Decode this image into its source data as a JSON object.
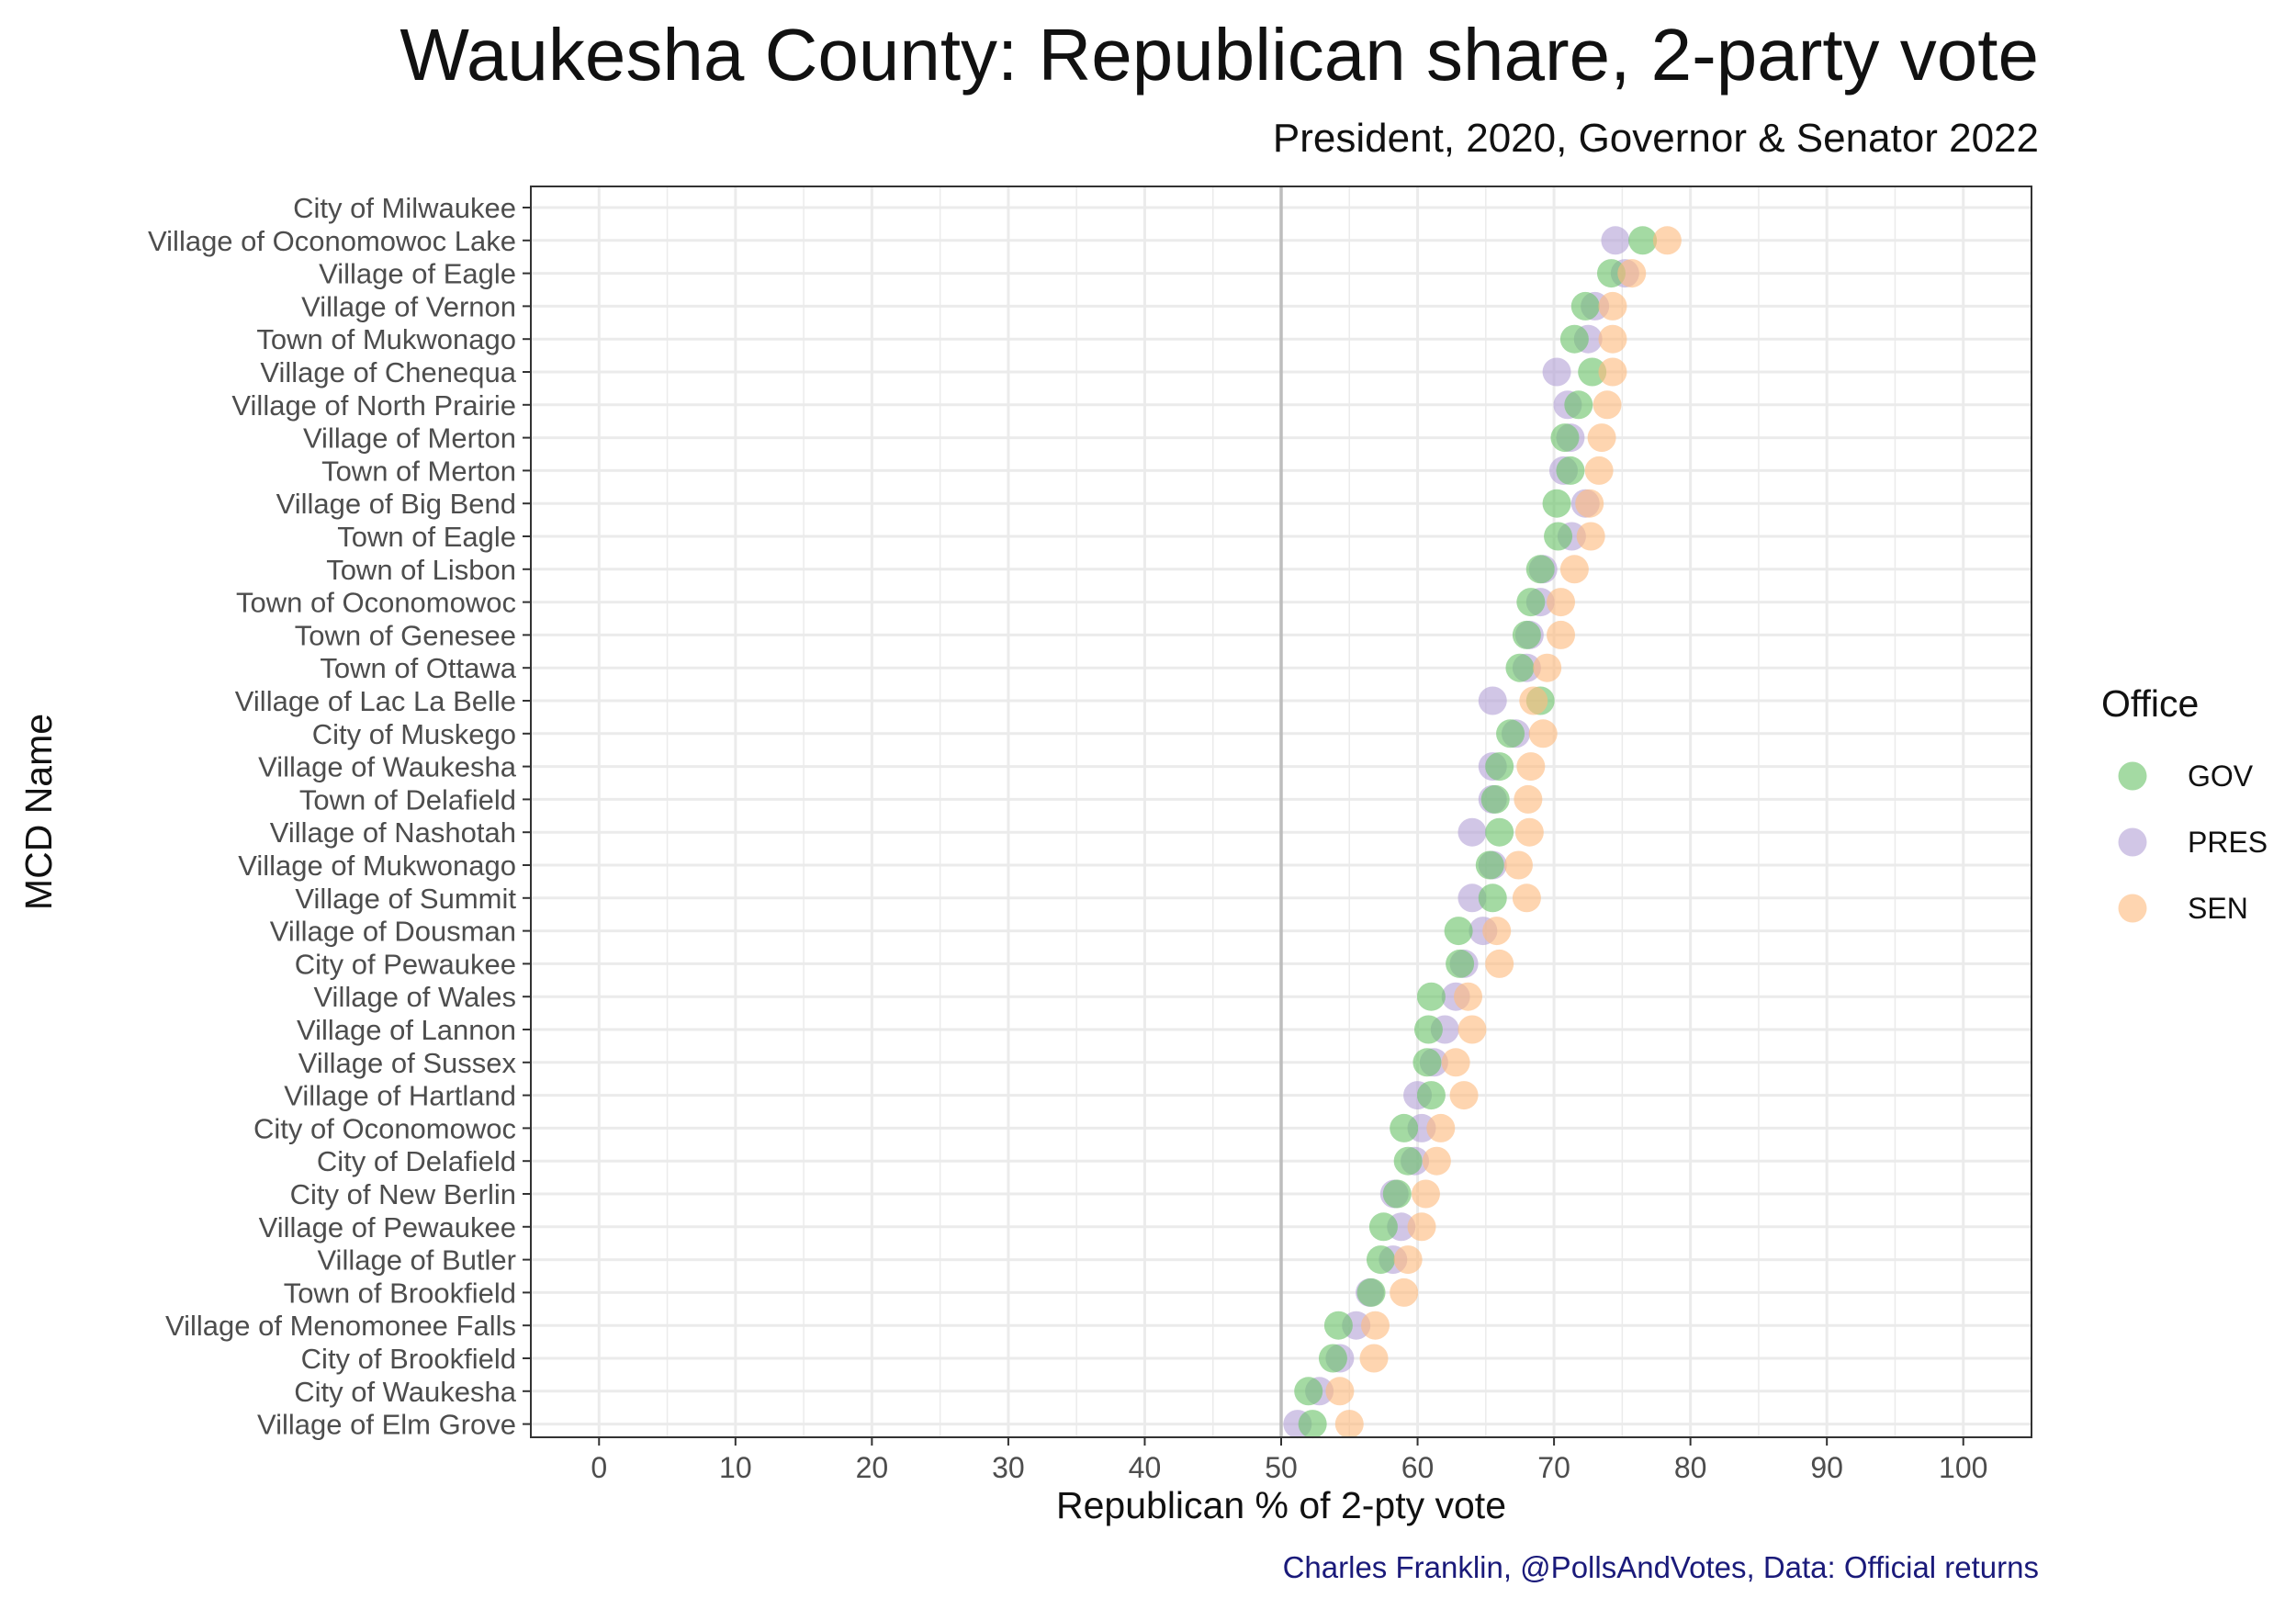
{
  "header": {
    "title": "Waukesha County: Republican share, 2-party vote",
    "subtitle": "President, 2020, Governor & Senator 2022",
    "caption": "Charles Franklin, @PollsAndVotes, Data: Official returns"
  },
  "colors": {
    "GOV": "#6cc46a",
    "PRES": "#b4a3d6",
    "SEN": "#fdbb7f",
    "reference_line": "#bdbdbd",
    "grid": "#ebebeb",
    "panel_border": "#333333"
  },
  "legend": {
    "title": "Office",
    "position": "right",
    "items": [
      {
        "key": "GOV",
        "label": "GOV"
      },
      {
        "key": "PRES",
        "label": "PRES"
      },
      {
        "key": "SEN",
        "label": "SEN"
      }
    ]
  },
  "chart_data": {
    "type": "scatter",
    "title": "Waukesha County: Republican share, 2-party vote",
    "subtitle": "President, 2020, Governor & Senator 2022",
    "xlabel": "Republican % of 2-pty vote",
    "ylabel": "MCD Name",
    "xlim": [
      -5,
      105
    ],
    "xticks": [
      0,
      10,
      20,
      30,
      40,
      50,
      60,
      70,
      80,
      90,
      100
    ],
    "reference_line_x": 50,
    "grid": true,
    "categories": [
      "City of Milwaukee",
      "Village of Oconomowoc Lake",
      "Village of Eagle",
      "Village of Vernon",
      "Town of Mukwonago",
      "Village of Chenequa",
      "Village of North Prairie",
      "Village of Merton",
      "Town of Merton",
      "Village of Big Bend",
      "Town of Eagle",
      "Town of Lisbon",
      "Town of Oconomowoc",
      "Town of Genesee",
      "Town of Ottawa",
      "Village of Lac La Belle",
      "City of Muskego",
      "Village of Waukesha",
      "Town of Delafield",
      "Village of Nashotah",
      "Village of Mukwonago",
      "Village of Summit",
      "Village of Dousman",
      "City of Pewaukee",
      "Village of Wales",
      "Village of Lannon",
      "Village of Sussex",
      "Village of Hartland",
      "City of Oconomowoc",
      "City of Delafield",
      "City of New Berlin",
      "Village of Pewaukee",
      "Village of Butler",
      "Town of Brookfield",
      "Village of Menomonee Falls",
      "City of Brookfield",
      "City of Waukesha",
      "Village of Elm Grove"
    ],
    "series": [
      {
        "name": "GOV",
        "values": [
          null,
          76.5,
          74.2,
          72.3,
          71.5,
          72.8,
          71.8,
          70.8,
          71.2,
          70.2,
          70.3,
          69.0,
          68.3,
          68.0,
          67.5,
          69.0,
          66.8,
          66.0,
          65.7,
          66.0,
          65.3,
          65.5,
          63.0,
          63.1,
          61.0,
          60.8,
          60.7,
          61.0,
          59.0,
          59.3,
          58.5,
          57.5,
          57.3,
          56.6,
          54.2,
          53.8,
          52.0,
          52.3
        ]
      },
      {
        "name": "PRES",
        "values": [
          null,
          74.5,
          75.2,
          73.0,
          72.5,
          70.2,
          71.0,
          71.2,
          70.7,
          72.3,
          71.3,
          69.2,
          69.0,
          68.2,
          68.0,
          65.5,
          67.2,
          65.5,
          65.5,
          64.0,
          65.5,
          64.0,
          64.8,
          63.4,
          62.8,
          62.0,
          61.2,
          60.0,
          60.3,
          59.8,
          58.3,
          58.8,
          58.2,
          56.5,
          55.5,
          54.3,
          52.8,
          51.2
        ]
      },
      {
        "name": "SEN",
        "values": [
          null,
          78.3,
          75.7,
          74.3,
          74.3,
          74.3,
          73.9,
          73.5,
          73.3,
          72.6,
          72.7,
          71.5,
          70.5,
          70.5,
          69.5,
          68.5,
          69.2,
          68.3,
          68.1,
          68.2,
          67.4,
          68.0,
          65.8,
          66.0,
          63.7,
          64.0,
          62.8,
          63.4,
          61.7,
          61.4,
          60.6,
          60.3,
          59.3,
          59.0,
          56.9,
          56.8,
          54.3,
          55.0
        ]
      }
    ]
  }
}
